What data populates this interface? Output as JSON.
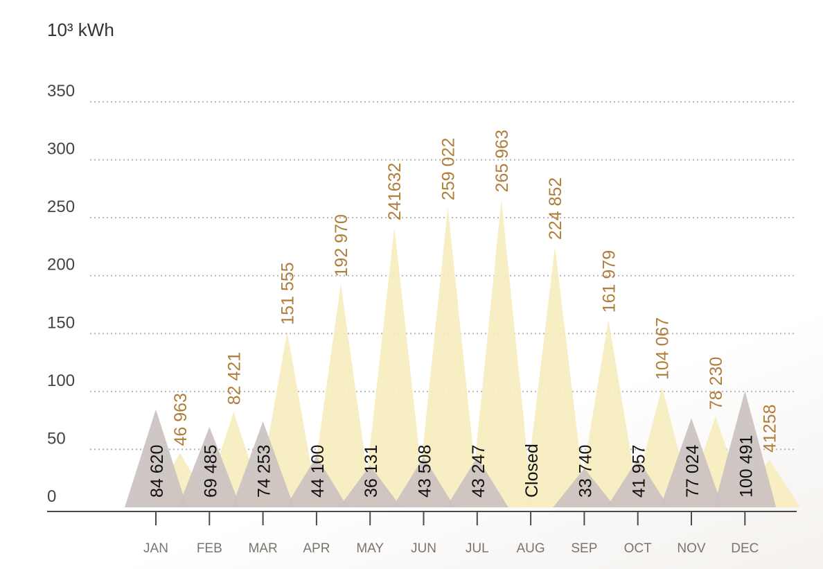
{
  "chart_data": {
    "type": "area",
    "unit_label": "10³ kWh",
    "ylim": [
      0,
      350
    ],
    "yticks": [
      "0",
      "50",
      "100",
      "150",
      "200",
      "250",
      "300",
      "350"
    ],
    "grid": true,
    "categories": [
      "JAN",
      "FEB",
      "MAR",
      "APR",
      "MAY",
      "JUN",
      "JUL",
      "AUG",
      "SEP",
      "OCT",
      "NOV",
      "DEC"
    ],
    "series": [
      {
        "color": "#cbc2c0",
        "values": [
          84620,
          69485,
          74253,
          44100,
          36131,
          43508,
          43247,
          null,
          33740,
          41957,
          77024,
          100491
        ],
        "labels": [
          "84 620",
          "69 485",
          "74 253",
          "44 100",
          "36 131",
          "43 508",
          "43 247",
          "Closed",
          "33 740",
          "41 957",
          "77 024",
          "100 491"
        ]
      },
      {
        "color": "#f6edbf",
        "values": [
          46963,
          82421,
          151555,
          192970,
          241632,
          259022,
          265963,
          224852,
          161979,
          104067,
          78230,
          41258
        ],
        "labels": [
          "46 963",
          "82 421",
          "151 555",
          "192  970",
          "241632",
          "259 022",
          "265 963",
          "224 852",
          "161 979",
          "104 067",
          "78 230",
          "41258"
        ]
      }
    ]
  }
}
